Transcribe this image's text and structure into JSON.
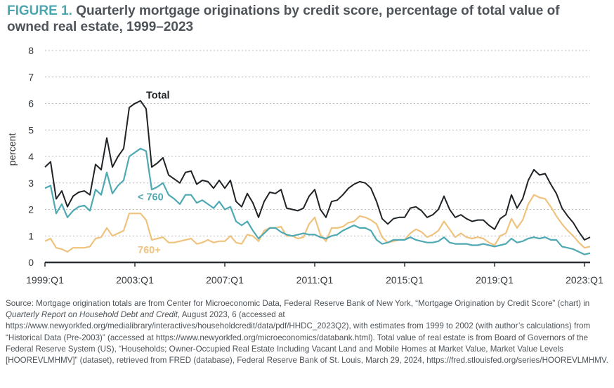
{
  "header": {
    "figure_label": "FIGURE 1.",
    "title": "Quarterly mortgage originations by credit score, percentage of total value of owned real estate, 1999–2023"
  },
  "source": {
    "prefix": "Source: Mortgage origination totals are from Center for Microeconomic Data, Federal Reserve Bank of New York, “Mortgage Origination by Credit Score” (chart) in ",
    "italic": "Quarterly Report on Household Debt and Credit",
    "suffix": ", August 2023, 6 (accessed at https://www.newyorkfed.org/medialibrary/interactives/householdcredit/data/pdf/HHDC_2023Q2), with estimates from 1999 to 2002 (with author’s calculations) from “Historical Data (Pre-2003)” (accessed at https://www.newyorkfed.org/microeconomics/databank.html). Total value of real estate is from Board of Governors of the Federal Reserve System (US), “Households; Owner-Occupied Real Estate Including Vacant Land and Mobile Homes at Market Value, Market Value Levels [HOOREVLMHMV]” (dataset), retrieved from FRED (database), Federal Reserve Bank of St. Louis, March 29, 2024, https://fred.stlouisfed.org/series/HOOREVLMHMV."
  },
  "colors": {
    "total": "#1f2326",
    "under_760": "#4fa9b3",
    "over_760": "#efc37e",
    "grid": "#b9bcbf",
    "axis": "#2b2f33"
  },
  "chart_data": {
    "type": "line",
    "title": "Quarterly mortgage originations by credit score, percentage of total value of owned real estate, 1999–2023",
    "xlabel": "",
    "ylabel": "percent",
    "x_start": "1999:Q1",
    "x_tick_labels": [
      "1999:Q1",
      "2003:Q1",
      "2007:Q1",
      "2011:Q1",
      "2015:Q1",
      "2019:Q1",
      "2023:Q1"
    ],
    "y_tick_labels": [
      "0",
      "1",
      "2",
      "3",
      "4",
      "5",
      "6",
      "7",
      "8"
    ],
    "ylim": [
      0,
      8
    ],
    "grid": "horizontal dashed",
    "legend": "direct labels on lines",
    "series": [
      {
        "name": "Total",
        "color": "#1f2326",
        "values": [
          3.6,
          3.8,
          2.4,
          2.7,
          2.1,
          2.5,
          2.65,
          2.7,
          2.55,
          3.7,
          3.5,
          4.7,
          3.6,
          4.0,
          4.3,
          5.85,
          6.0,
          6.1,
          5.8,
          3.6,
          3.75,
          3.95,
          3.3,
          3.15,
          3.0,
          3.4,
          3.45,
          2.95,
          3.1,
          3.05,
          2.8,
          3.1,
          2.8,
          3.1,
          2.3,
          2.1,
          2.6,
          2.25,
          1.7,
          2.3,
          2.65,
          2.6,
          2.75,
          2.05,
          2.0,
          1.95,
          2.05,
          2.5,
          2.75,
          2.0,
          1.7,
          2.3,
          2.35,
          2.55,
          2.8,
          2.95,
          3.05,
          3.0,
          2.8,
          2.3,
          1.65,
          1.45,
          1.65,
          1.7,
          1.7,
          2.05,
          2.1,
          1.95,
          1.7,
          1.8,
          2.0,
          2.5,
          2.0,
          1.7,
          1.8,
          1.65,
          1.55,
          1.6,
          1.6,
          1.4,
          1.25,
          1.65,
          1.8,
          2.55,
          2.05,
          2.4,
          3.1,
          3.5,
          3.3,
          3.35,
          2.95,
          2.6,
          2.05,
          1.75,
          1.5,
          1.15,
          0.85,
          0.95
        ]
      },
      {
        "name": "< 760",
        "color": "#4fa9b3",
        "values": [
          2.8,
          2.9,
          1.85,
          2.2,
          1.7,
          1.95,
          2.1,
          2.15,
          1.95,
          2.75,
          2.55,
          3.4,
          2.6,
          2.9,
          3.1,
          4.0,
          4.15,
          4.3,
          4.2,
          2.75,
          2.85,
          3.0,
          2.55,
          2.4,
          2.2,
          2.55,
          2.55,
          2.25,
          2.35,
          2.2,
          2.05,
          2.3,
          2.0,
          2.1,
          1.55,
          1.4,
          1.55,
          1.2,
          0.9,
          1.1,
          1.3,
          1.3,
          1.15,
          1.05,
          1.0,
          1.05,
          1.1,
          1.05,
          1.05,
          0.95,
          0.9,
          1.0,
          1.05,
          1.2,
          1.3,
          1.4,
          1.3,
          1.3,
          1.2,
          0.85,
          0.7,
          0.75,
          0.85,
          0.85,
          0.85,
          0.95,
          0.85,
          0.8,
          0.75,
          0.75,
          0.8,
          0.95,
          0.75,
          0.7,
          0.7,
          0.7,
          0.65,
          0.65,
          0.7,
          0.65,
          0.6,
          0.65,
          0.7,
          0.9,
          0.75,
          0.8,
          0.9,
          0.95,
          0.9,
          0.95,
          0.85,
          0.85,
          0.6,
          0.55,
          0.5,
          0.4,
          0.3,
          0.35
        ]
      },
      {
        "name": "760+",
        "color": "#efc37e",
        "values": [
          0.8,
          0.9,
          0.55,
          0.5,
          0.4,
          0.55,
          0.55,
          0.55,
          0.6,
          0.9,
          0.95,
          1.3,
          1.0,
          1.1,
          1.2,
          1.85,
          1.85,
          1.85,
          1.6,
          0.85,
          0.9,
          0.95,
          0.75,
          0.75,
          0.8,
          0.85,
          0.9,
          0.7,
          0.75,
          0.85,
          0.75,
          0.8,
          0.8,
          1.0,
          0.75,
          0.7,
          1.05,
          1.0,
          0.8,
          1.2,
          1.3,
          1.3,
          1.35,
          1.0,
          1.0,
          0.9,
          0.95,
          1.45,
          1.7,
          1.05,
          0.8,
          1.3,
          1.3,
          1.35,
          1.5,
          1.55,
          1.75,
          1.7,
          1.6,
          1.45,
          0.95,
          0.75,
          0.8,
          0.85,
          0.85,
          1.1,
          1.25,
          1.15,
          0.95,
          1.05,
          1.2,
          1.55,
          1.25,
          0.95,
          1.1,
          0.95,
          0.9,
          0.95,
          0.9,
          0.75,
          0.65,
          1.0,
          1.1,
          1.65,
          1.3,
          1.6,
          2.2,
          2.55,
          2.45,
          2.4,
          2.1,
          1.75,
          1.45,
          1.2,
          1.0,
          0.75,
          0.55,
          0.6
        ]
      }
    ]
  }
}
